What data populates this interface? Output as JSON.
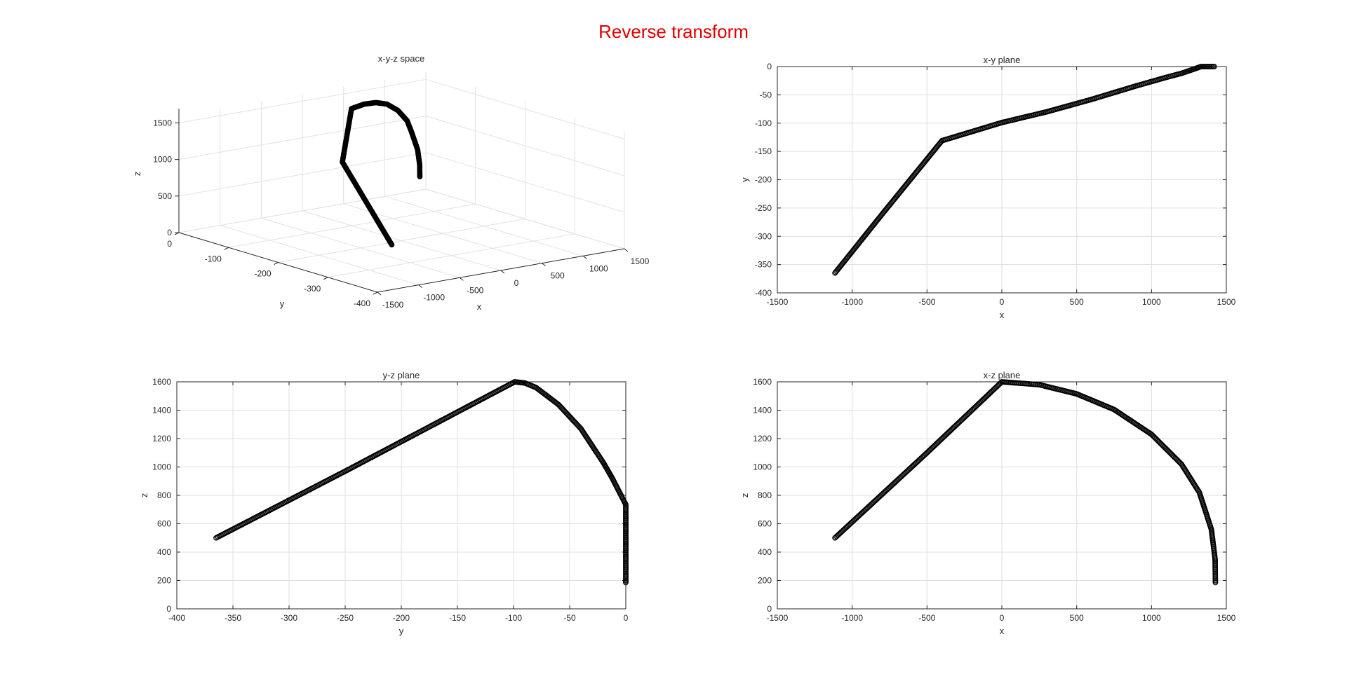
{
  "figure": {
    "suptitle": "Reverse transform",
    "suptitle_color": "#e00000"
  },
  "chart_data": [
    {
      "id": "xyz",
      "type": "scatter3d",
      "title": "x-y-z space",
      "xlabel": "x",
      "ylabel": "y",
      "zlabel": "z",
      "xlim": [
        -1500,
        1500
      ],
      "ylim": [
        -400,
        0
      ],
      "zlim": [
        0,
        1600
      ],
      "xticks": [
        -1500,
        -1000,
        -500,
        0,
        500,
        1000,
        1500
      ],
      "xtick_labels": [
        "-1500",
        "-1000",
        "-500",
        "0",
        "500",
        "1000",
        "1500"
      ],
      "yticks": [
        -400,
        -300,
        -200,
        -100,
        0
      ],
      "ytick_labels": [
        "-400",
        "-300",
        "-200",
        "-100",
        "0"
      ],
      "zticks": [
        0,
        500,
        1000,
        1500
      ],
      "ztick_labels": [
        "0",
        "500",
        "1000",
        "1500"
      ],
      "grid": true,
      "marker": "circle-open",
      "color": "#000000",
      "path": "curve"
    },
    {
      "id": "xy",
      "type": "scatter",
      "title": "x-y plane",
      "xlabel": "x",
      "ylabel": "y",
      "xlim": [
        -1500,
        1500
      ],
      "ylim": [
        -400,
        0
      ],
      "xticks": [
        -1500,
        -1000,
        -500,
        0,
        500,
        1000,
        1500
      ],
      "xtick_labels": [
        "-1500",
        "-1000",
        "-500",
        "0",
        "500",
        "1000",
        "1500"
      ],
      "yticks": [
        -400,
        -350,
        -300,
        -250,
        -200,
        -150,
        -100,
        -50,
        0
      ],
      "ytick_labels": [
        "-400",
        "-350",
        "-300",
        "-250",
        "-200",
        "-150",
        "-100",
        "-50",
        "0"
      ],
      "grid": true,
      "marker": "circle-open",
      "color": "#000000",
      "series": [
        {
          "points": [
            [
              -1115,
              -365
            ],
            [
              -800,
              -261
            ],
            [
              -400,
              -131
            ],
            [
              0,
              -99
            ],
            [
              300,
              -80
            ],
            [
              600,
              -58
            ],
            [
              900,
              -34
            ],
            [
              1100,
              -19
            ],
            [
              1200,
              -12
            ],
            [
              1300,
              -3
            ],
            [
              1330,
              0
            ],
            [
              1420,
              0
            ]
          ]
        }
      ]
    },
    {
      "id": "yz",
      "type": "scatter",
      "title": "y-z plane",
      "xlabel": "y",
      "ylabel": "z",
      "xlim": [
        -400,
        0
      ],
      "ylim": [
        0,
        1600
      ],
      "xticks": [
        -400,
        -350,
        -300,
        -250,
        -200,
        -150,
        -100,
        -50,
        0
      ],
      "xtick_labels": [
        "-400",
        "-350",
        "-300",
        "-250",
        "-200",
        "-150",
        "-100",
        "-50",
        "0"
      ],
      "yticks": [
        0,
        200,
        400,
        600,
        800,
        1000,
        1200,
        1400,
        1600
      ],
      "ytick_labels": [
        "0",
        "200",
        "400",
        "600",
        "800",
        "1000",
        "1200",
        "1400",
        "1600"
      ],
      "grid": true,
      "marker": "circle-open",
      "color": "#000000",
      "series": [
        {
          "points": [
            [
              -365,
              500
            ],
            [
              -250,
              970
            ],
            [
              -99,
              1600
            ],
            [
              -90,
              1592
            ],
            [
              -80,
              1560
            ],
            [
              -60,
              1440
            ],
            [
              -40,
              1270
            ],
            [
              -20,
              1030
            ],
            [
              -12,
              920
            ],
            [
              0,
              735
            ],
            [
              0,
              500
            ],
            [
              0,
              185
            ]
          ]
        }
      ]
    },
    {
      "id": "xz",
      "type": "scatter",
      "title": "x-z plane",
      "xlabel": "x",
      "ylabel": "z",
      "xlim": [
        -1500,
        1500
      ],
      "ylim": [
        0,
        1600
      ],
      "xticks": [
        -1500,
        -1000,
        -500,
        0,
        500,
        1000,
        1500
      ],
      "xtick_labels": [
        "-1500",
        "-1000",
        "-500",
        "0",
        "500",
        "1000",
        "1500"
      ],
      "yticks": [
        0,
        200,
        400,
        600,
        800,
        1000,
        1200,
        1400,
        1600
      ],
      "ytick_labels": [
        "0",
        "200",
        "400",
        "600",
        "800",
        "1000",
        "1200",
        "1400",
        "1600"
      ],
      "grid": true,
      "marker": "circle-open",
      "color": "#000000",
      "series": [
        {
          "points": [
            [
              -1115,
              500
            ],
            [
              -500,
              1100
            ],
            [
              0,
              1600
            ],
            [
              250,
              1580
            ],
            [
              500,
              1515
            ],
            [
              750,
              1405
            ],
            [
              1000,
              1230
            ],
            [
              1200,
              1020
            ],
            [
              1320,
              820
            ],
            [
              1400,
              560
            ],
            [
              1425,
              350
            ],
            [
              1427,
              185
            ]
          ]
        }
      ]
    }
  ]
}
